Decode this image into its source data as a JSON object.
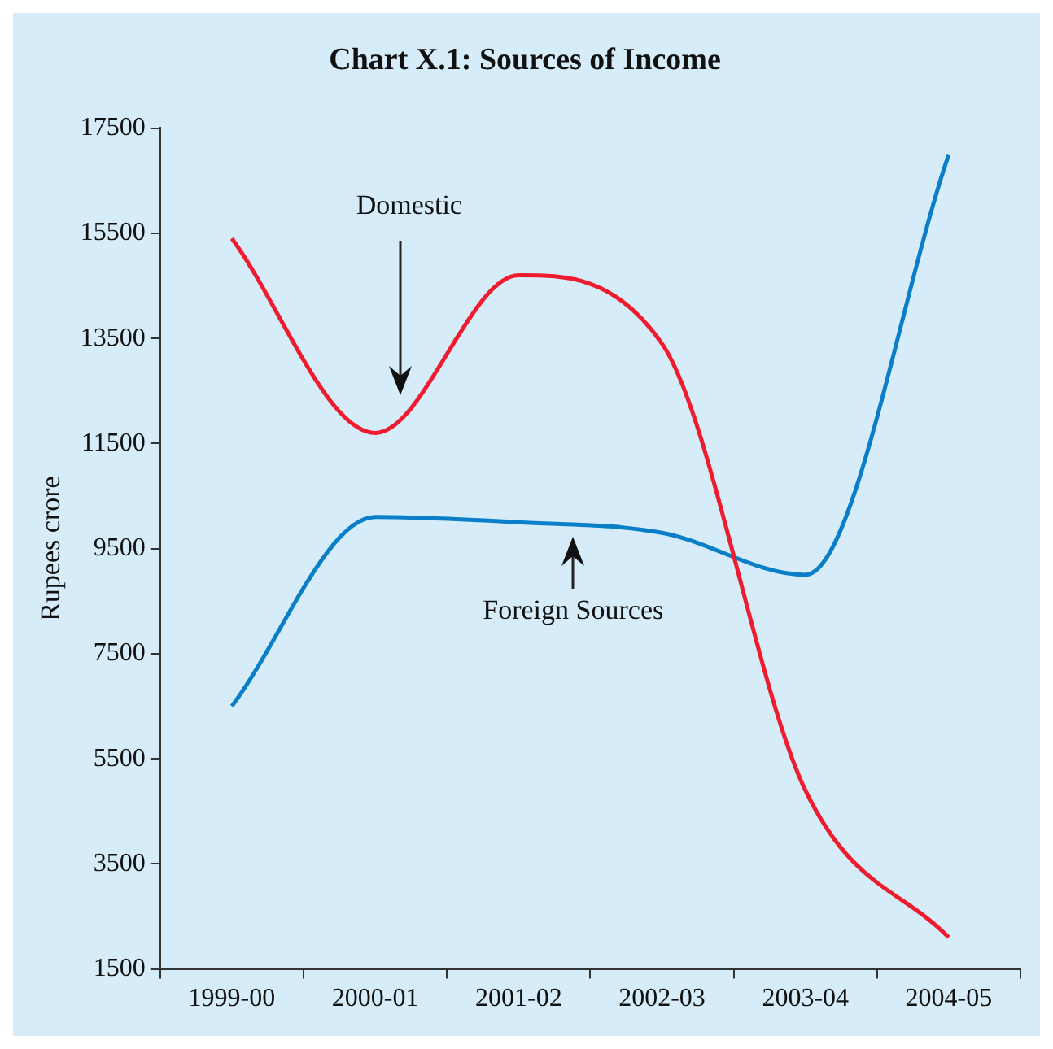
{
  "chart_data": {
    "type": "line",
    "title": "Chart X.1: Sources of Income",
    "ylabel": "Rupees crore",
    "categories": [
      "1999-00",
      "2000-01",
      "2001-02",
      "2002-03",
      "2003-04",
      "2004-05"
    ],
    "series": [
      {
        "name": "Domestic",
        "color": "#ee1c2e",
        "values": [
          15400,
          11700,
          14700,
          13400,
          4900,
          2100
        ]
      },
      {
        "name": "Foreign Sources",
        "color": "#0a7fc8",
        "values": [
          6500,
          10100,
          10000,
          9800,
          9000,
          17000
        ]
      }
    ],
    "ylim": [
      1500,
      17500
    ],
    "yticks": [
      1500,
      3500,
      5500,
      7500,
      9500,
      11500,
      13500,
      15500,
      17500
    ],
    "grid": false,
    "legend": false,
    "marker": "none",
    "line_style": "solid"
  }
}
